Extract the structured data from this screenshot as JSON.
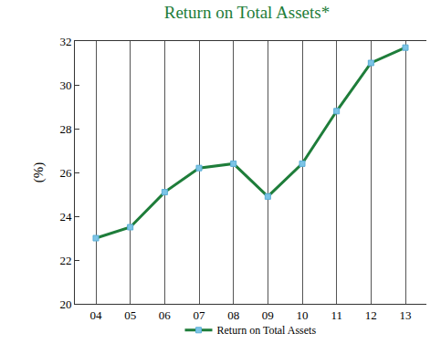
{
  "chart_data": {
    "type": "line",
    "title": "Return on Total Assets*",
    "y_label": "(%)",
    "categories": [
      "04",
      "05",
      "06",
      "07",
      "08",
      "09",
      "10",
      "11",
      "12",
      "13"
    ],
    "series": [
      {
        "name": "Return on Total Assets",
        "color": "#1e7d3a",
        "values": [
          23.0,
          23.5,
          25.1,
          26.2,
          26.4,
          24.9,
          26.4,
          28.8,
          31.0,
          31.7
        ]
      }
    ],
    "ylim": [
      20,
      32
    ],
    "yticks": [
      20,
      22,
      24,
      26,
      28,
      30,
      32
    ],
    "grid": "x",
    "legend": "bottom",
    "marker": "square",
    "line_style": "solid"
  }
}
